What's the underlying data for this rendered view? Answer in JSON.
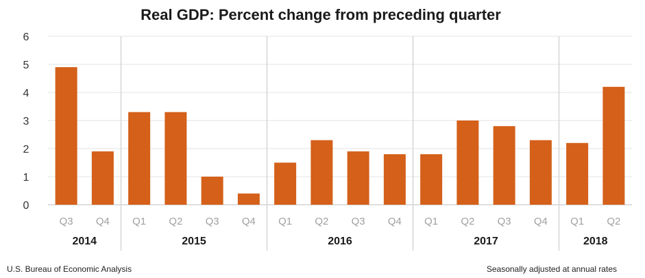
{
  "colors": {
    "bar": "#D4601A",
    "grid": "#e3e3e3",
    "year_divider": "#d6d6d6",
    "axis": "#bdbdbd",
    "quarter_text": "#a0a0a0"
  },
  "chart_data": {
    "type": "bar",
    "title": "Real GDP:  Percent change from preceding quarter",
    "xlabel": "",
    "ylabel": "",
    "ylim": [
      0,
      6
    ],
    "yticks": [
      "0",
      "1",
      "2",
      "3",
      "4",
      "5",
      "6"
    ],
    "grid": true,
    "categories": [
      "Q3",
      "Q4",
      "Q1",
      "Q2",
      "Q3",
      "Q4",
      "Q1",
      "Q2",
      "Q3",
      "Q4",
      "Q1",
      "Q2",
      "Q3",
      "Q4",
      "Q1",
      "Q2"
    ],
    "years": [
      {
        "label": "2014",
        "quarters": 2
      },
      {
        "label": "2015",
        "quarters": 4
      },
      {
        "label": "2016",
        "quarters": 4
      },
      {
        "label": "2017",
        "quarters": 4
      },
      {
        "label": "2018",
        "quarters": 2
      }
    ],
    "values": [
      4.9,
      1.9,
      3.3,
      3.3,
      1.0,
      0.4,
      1.5,
      2.3,
      1.9,
      1.8,
      1.8,
      3.0,
      2.8,
      2.3,
      2.2,
      4.2
    ]
  },
  "footer": {
    "source": "U.S. Bureau of Economic Analysis",
    "note": "Seasonally adjusted at annual rates"
  }
}
